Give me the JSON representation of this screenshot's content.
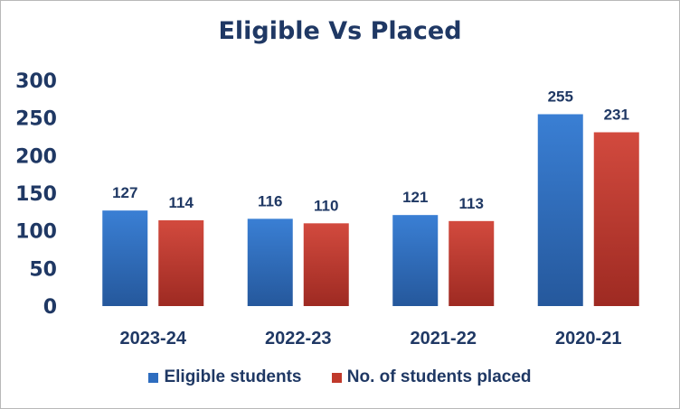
{
  "chart_data": {
    "type": "bar",
    "title": "Eligible Vs Placed",
    "xlabel": "",
    "ylabel": "",
    "categories": [
      "2023-24",
      "2022-23",
      "2021-22",
      "2020-21"
    ],
    "series": [
      {
        "name": "Eligible students",
        "values": [
          127,
          116,
          121,
          255
        ],
        "color": "#2e6dbf"
      },
      {
        "name": "No. of students placed",
        "values": [
          114,
          110,
          113,
          231
        ],
        "color": "#c0392b"
      }
    ],
    "ylim": [
      0,
      300
    ],
    "yticks": [
      "0",
      "50",
      "100",
      "150",
      "200",
      "250",
      "300"
    ],
    "grid": false,
    "data_labels": true,
    "legend": "bottom"
  }
}
